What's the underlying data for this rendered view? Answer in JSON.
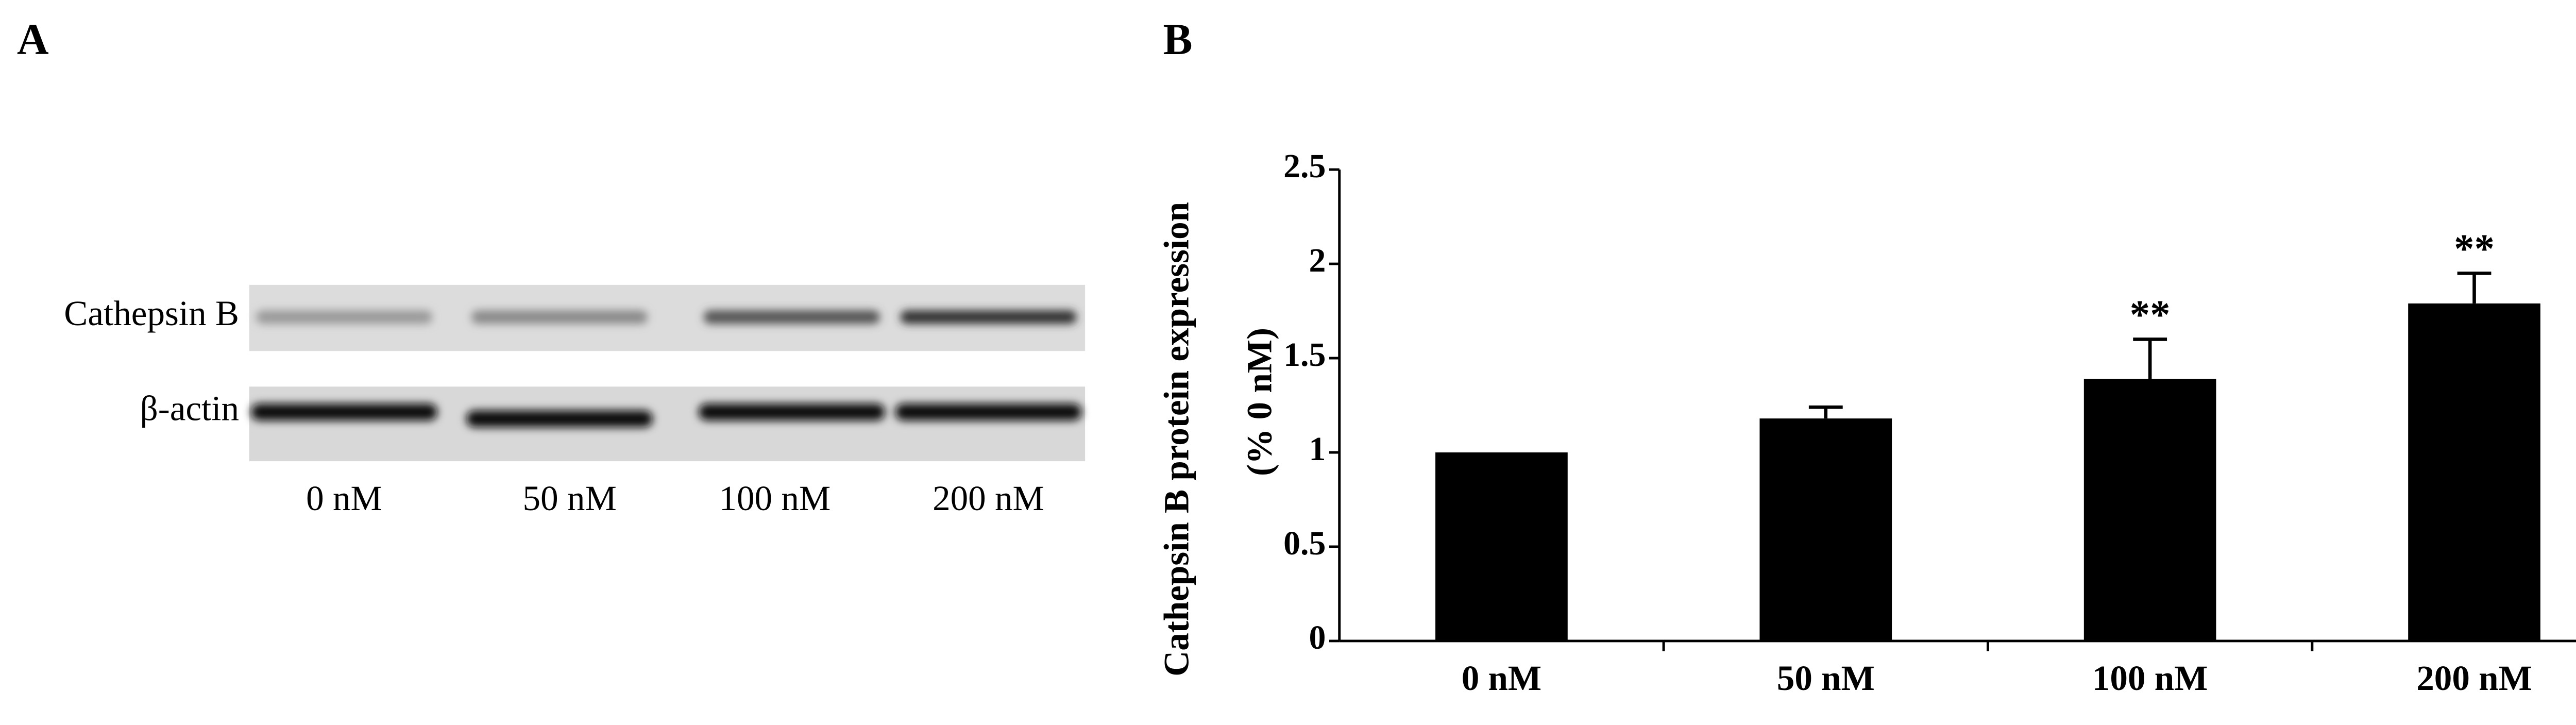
{
  "panels": [
    "A",
    "B"
  ],
  "blot": {
    "rows": [
      "Cathepsin B",
      "β-actin"
    ],
    "lanes": [
      "0 nM",
      "50 nM",
      "100 nM",
      "200 nM"
    ]
  },
  "chart_data": {
    "type": "bar",
    "ylabel": [
      "Cathepsin B protein expression",
      "(% 0  nM)"
    ],
    "categories": [
      "0 nM",
      "50 nM",
      "100 nM",
      "200 nM"
    ],
    "values": [
      1.0,
      1.18,
      1.39,
      1.79
    ],
    "errors": [
      null,
      0.06,
      0.21,
      0.16
    ],
    "annotations": [
      null,
      null,
      "**",
      "**"
    ],
    "color": "#000000",
    "ylim": [
      0,
      2.5
    ],
    "yticks": [
      0,
      0.5,
      1,
      1.5,
      2,
      2.5
    ],
    "grid": false
  }
}
